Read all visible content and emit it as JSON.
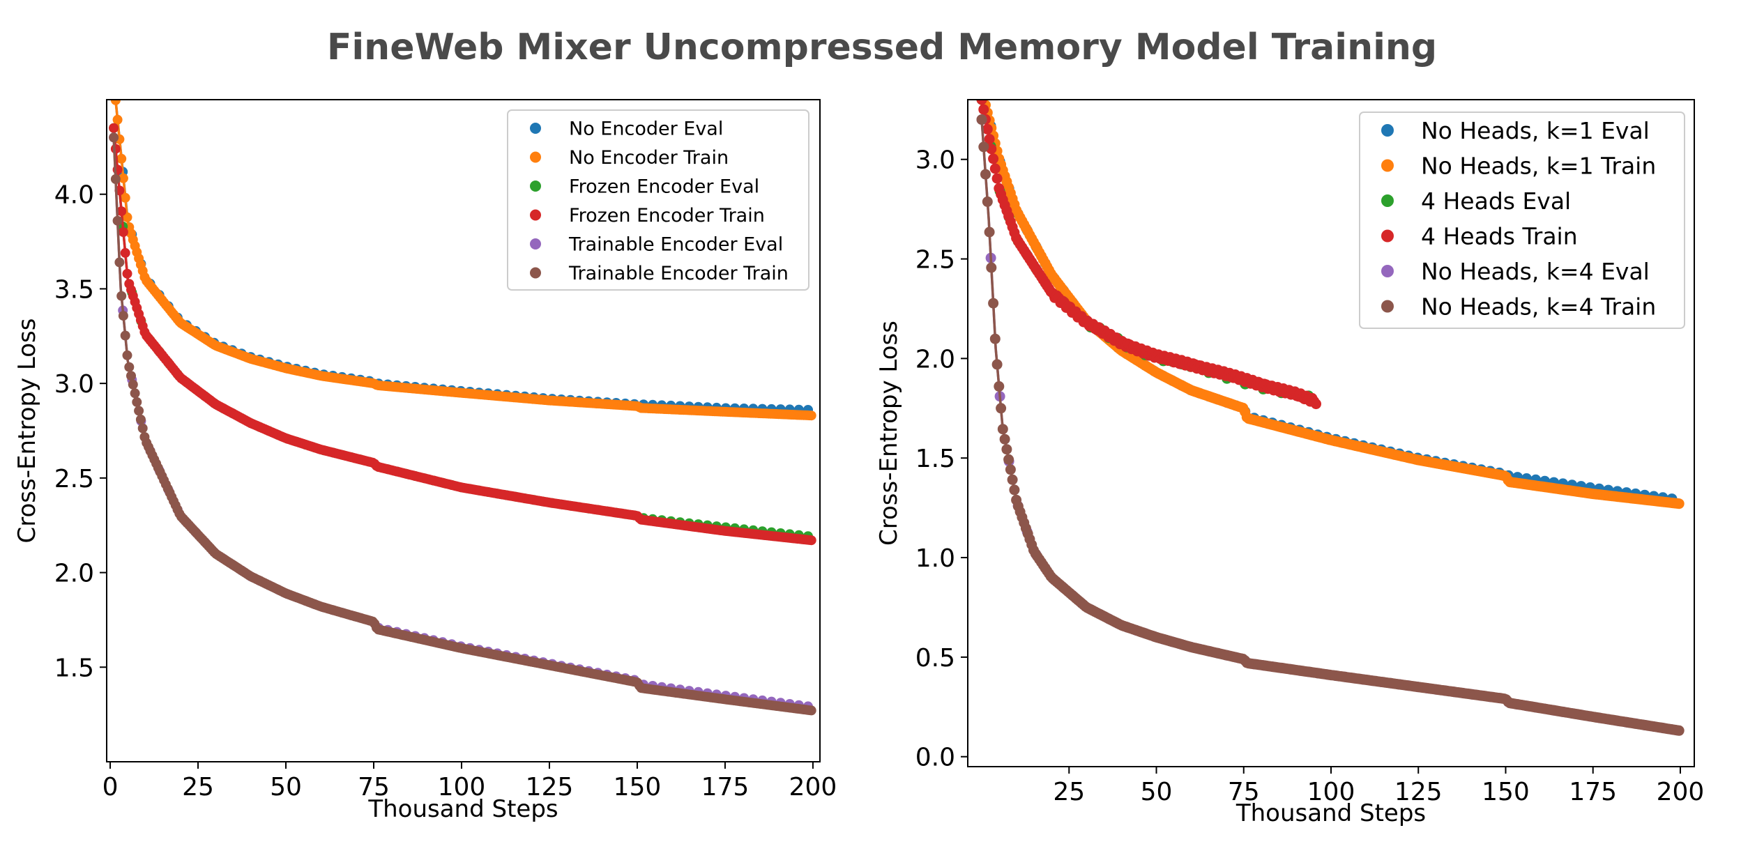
{
  "title": "FineWeb Mixer Uncompressed Memory Model Training",
  "colors": {
    "tab_blue": "#1f77b4",
    "tab_orange": "#ff7f0e",
    "tab_green": "#2ca02c",
    "tab_red": "#d62728",
    "tab_purple": "#9467bd",
    "tab_brown": "#8c564b"
  },
  "chart_data": [
    {
      "type": "scatter",
      "xlabel": "Thousand Steps",
      "ylabel": "Cross-Entropy Loss",
      "xlim": [
        -1,
        202
      ],
      "ylim": [
        1.0,
        4.5
      ],
      "xticks": [
        0,
        25,
        50,
        75,
        100,
        125,
        150,
        175,
        200
      ],
      "yticks": [
        1.5,
        2.0,
        2.5,
        3.0,
        3.5,
        4.0
      ],
      "grid": false,
      "legend_position": "top-right",
      "series": [
        {
          "name": "No Encoder Eval",
          "color": "#1f77b4",
          "kind": "eval",
          "points": [
            [
              1,
              4.6
            ],
            [
              5,
              3.86
            ],
            [
              10,
              3.56
            ],
            [
              20,
              3.33
            ],
            [
              30,
              3.21
            ],
            [
              40,
              3.14
            ],
            [
              50,
              3.09
            ],
            [
              60,
              3.05
            ],
            [
              75,
              3.01
            ],
            [
              76,
              3.0
            ],
            [
              100,
              2.96
            ],
            [
              125,
              2.92
            ],
            [
              150,
              2.89
            ],
            [
              151,
              2.89
            ],
            [
              175,
              2.87
            ],
            [
              200,
              2.86
            ]
          ]
        },
        {
          "name": "No Encoder Train",
          "color": "#ff7f0e",
          "kind": "train",
          "points": [
            [
              1,
              4.6
            ],
            [
              5,
              3.85
            ],
            [
              10,
              3.55
            ],
            [
              20,
              3.32
            ],
            [
              30,
              3.2
            ],
            [
              40,
              3.13
            ],
            [
              50,
              3.08
            ],
            [
              60,
              3.04
            ],
            [
              75,
              3.0
            ],
            [
              76,
              2.99
            ],
            [
              100,
              2.95
            ],
            [
              125,
              2.91
            ],
            [
              150,
              2.88
            ],
            [
              151,
              2.87
            ],
            [
              175,
              2.85
            ],
            [
              200,
              2.83
            ]
          ]
        },
        {
          "name": "Frozen Encoder Eval",
          "color": "#2ca02c",
          "kind": "eval",
          "points": [
            [
              1,
              4.35
            ],
            [
              5,
              3.55
            ],
            [
              10,
              3.26
            ],
            [
              20,
              3.03
            ],
            [
              30,
              2.89
            ],
            [
              40,
              2.79
            ],
            [
              50,
              2.71
            ],
            [
              60,
              2.65
            ],
            [
              75,
              2.58
            ],
            [
              76,
              2.56
            ],
            [
              100,
              2.45
            ],
            [
              125,
              2.37
            ],
            [
              150,
              2.3
            ],
            [
              151,
              2.29
            ],
            [
              175,
              2.24
            ],
            [
              200,
              2.19
            ]
          ]
        },
        {
          "name": "Frozen Encoder Train",
          "color": "#d62728",
          "kind": "train",
          "points": [
            [
              1,
              4.35
            ],
            [
              5,
              3.55
            ],
            [
              10,
              3.26
            ],
            [
              20,
              3.03
            ],
            [
              30,
              2.89
            ],
            [
              40,
              2.79
            ],
            [
              50,
              2.71
            ],
            [
              60,
              2.65
            ],
            [
              75,
              2.58
            ],
            [
              76,
              2.56
            ],
            [
              100,
              2.45
            ],
            [
              125,
              2.37
            ],
            [
              150,
              2.3
            ],
            [
              151,
              2.28
            ],
            [
              175,
              2.22
            ],
            [
              200,
              2.17
            ]
          ]
        },
        {
          "name": "Trainable Encoder Eval",
          "color": "#9467bd",
          "kind": "eval",
          "points": [
            [
              1,
              4.3
            ],
            [
              3,
              3.5
            ],
            [
              5,
              3.12
            ],
            [
              10,
              2.7
            ],
            [
              20,
              2.3
            ],
            [
              30,
              2.1
            ],
            [
              40,
              1.98
            ],
            [
              50,
              1.89
            ],
            [
              60,
              1.82
            ],
            [
              75,
              1.74
            ],
            [
              76,
              1.71
            ],
            [
              100,
              1.61
            ],
            [
              125,
              1.52
            ],
            [
              150,
              1.43
            ],
            [
              151,
              1.41
            ],
            [
              175,
              1.35
            ],
            [
              200,
              1.29
            ]
          ]
        },
        {
          "name": "Trainable Encoder Train",
          "color": "#8c564b",
          "kind": "train",
          "points": [
            [
              1,
              4.3
            ],
            [
              3,
              3.5
            ],
            [
              5,
              3.12
            ],
            [
              10,
              2.7
            ],
            [
              20,
              2.3
            ],
            [
              30,
              2.1
            ],
            [
              40,
              1.98
            ],
            [
              50,
              1.89
            ],
            [
              60,
              1.82
            ],
            [
              75,
              1.74
            ],
            [
              76,
              1.7
            ],
            [
              100,
              1.6
            ],
            [
              125,
              1.51
            ],
            [
              150,
              1.42
            ],
            [
              151,
              1.39
            ],
            [
              175,
              1.33
            ],
            [
              200,
              1.27
            ]
          ]
        }
      ]
    },
    {
      "type": "scatter",
      "xlabel": "Thousand Steps",
      "ylabel": "Cross-Entropy Loss",
      "xlim": [
        -4,
        204
      ],
      "ylim": [
        -0.05,
        3.3
      ],
      "xticks": [
        25,
        50,
        75,
        100,
        125,
        150,
        175,
        200
      ],
      "yticks": [
        0.0,
        0.5,
        1.0,
        1.5,
        2.0,
        2.5,
        3.0
      ],
      "grid": false,
      "legend_position": "top-right",
      "series": [
        {
          "name": "No Heads, k=1 Eval",
          "color": "#1f77b4",
          "kind": "eval",
          "points": [
            [
              0,
              3.35
            ],
            [
              5,
              3.0
            ],
            [
              10,
              2.74
            ],
            [
              20,
              2.42
            ],
            [
              30,
              2.19
            ],
            [
              40,
              2.04
            ],
            [
              50,
              1.93
            ],
            [
              60,
              1.84
            ],
            [
              75,
              1.75
            ],
            [
              76,
              1.71
            ],
            [
              100,
              1.6
            ],
            [
              125,
              1.5
            ],
            [
              150,
              1.42
            ],
            [
              151,
              1.41
            ],
            [
              175,
              1.35
            ],
            [
              200,
              1.29
            ]
          ]
        },
        {
          "name": "No Heads, k=1 Train",
          "color": "#ff7f0e",
          "kind": "train",
          "points": [
            [
              0,
              3.35
            ],
            [
              5,
              3.0
            ],
            [
              10,
              2.74
            ],
            [
              20,
              2.42
            ],
            [
              30,
              2.19
            ],
            [
              40,
              2.04
            ],
            [
              50,
              1.93
            ],
            [
              60,
              1.84
            ],
            [
              75,
              1.75
            ],
            [
              76,
              1.7
            ],
            [
              100,
              1.59
            ],
            [
              125,
              1.49
            ],
            [
              150,
              1.41
            ],
            [
              151,
              1.38
            ],
            [
              175,
              1.32
            ],
            [
              200,
              1.27
            ]
          ]
        },
        {
          "name": "4 Heads Eval",
          "color": "#2ca02c",
          "kind": "eval",
          "points": [
            [
              0,
              3.3
            ],
            [
              5,
              2.85
            ],
            [
              10,
              2.6
            ],
            [
              20,
              2.33
            ],
            [
              30,
              2.18
            ],
            [
              40,
              2.08
            ],
            [
              50,
              2.0
            ],
            [
              60,
              1.96
            ],
            [
              70,
              1.91
            ],
            [
              80,
              1.86
            ],
            [
              90,
              1.82
            ],
            [
              96,
              1.8
            ]
          ]
        },
        {
          "name": "4 Heads Train",
          "color": "#d62728",
          "kind": "train",
          "points": [
            [
              0,
              3.3
            ],
            [
              5,
              2.85
            ],
            [
              10,
              2.6
            ],
            [
              20,
              2.33
            ],
            [
              30,
              2.18
            ],
            [
              40,
              2.08
            ],
            [
              50,
              2.01
            ],
            [
              60,
              1.97
            ],
            [
              70,
              1.92
            ],
            [
              80,
              1.87
            ],
            [
              90,
              1.82
            ],
            [
              96,
              1.78
            ]
          ]
        },
        {
          "name": "No Heads, k=4 Eval",
          "color": "#9467bd",
          "kind": "eval",
          "points": [
            [
              0,
              3.2
            ],
            [
              2,
              2.7
            ],
            [
              4,
              2.05
            ],
            [
              6,
              1.65
            ],
            [
              10,
              1.28
            ],
            [
              15,
              1.03
            ],
            [
              20,
              0.9
            ],
            [
              30,
              0.75
            ],
            [
              40,
              0.66
            ],
            [
              50,
              0.6
            ],
            [
              60,
              0.55
            ],
            [
              75,
              0.49
            ],
            [
              76,
              0.47
            ],
            [
              100,
              0.41
            ],
            [
              125,
              0.35
            ],
            [
              150,
              0.29
            ],
            [
              151,
              0.27
            ],
            [
              175,
              0.2
            ],
            [
              200,
              0.13
            ]
          ]
        },
        {
          "name": "No Heads, k=4 Train",
          "color": "#8c564b",
          "kind": "train",
          "points": [
            [
              0,
              3.2
            ],
            [
              2,
              2.7
            ],
            [
              4,
              2.05
            ],
            [
              6,
              1.65
            ],
            [
              10,
              1.28
            ],
            [
              15,
              1.03
            ],
            [
              20,
              0.9
            ],
            [
              30,
              0.75
            ],
            [
              40,
              0.66
            ],
            [
              50,
              0.6
            ],
            [
              60,
              0.55
            ],
            [
              75,
              0.49
            ],
            [
              76,
              0.47
            ],
            [
              100,
              0.41
            ],
            [
              125,
              0.35
            ],
            [
              150,
              0.29
            ],
            [
              151,
              0.27
            ],
            [
              175,
              0.2
            ],
            [
              200,
              0.13
            ]
          ]
        }
      ]
    }
  ]
}
